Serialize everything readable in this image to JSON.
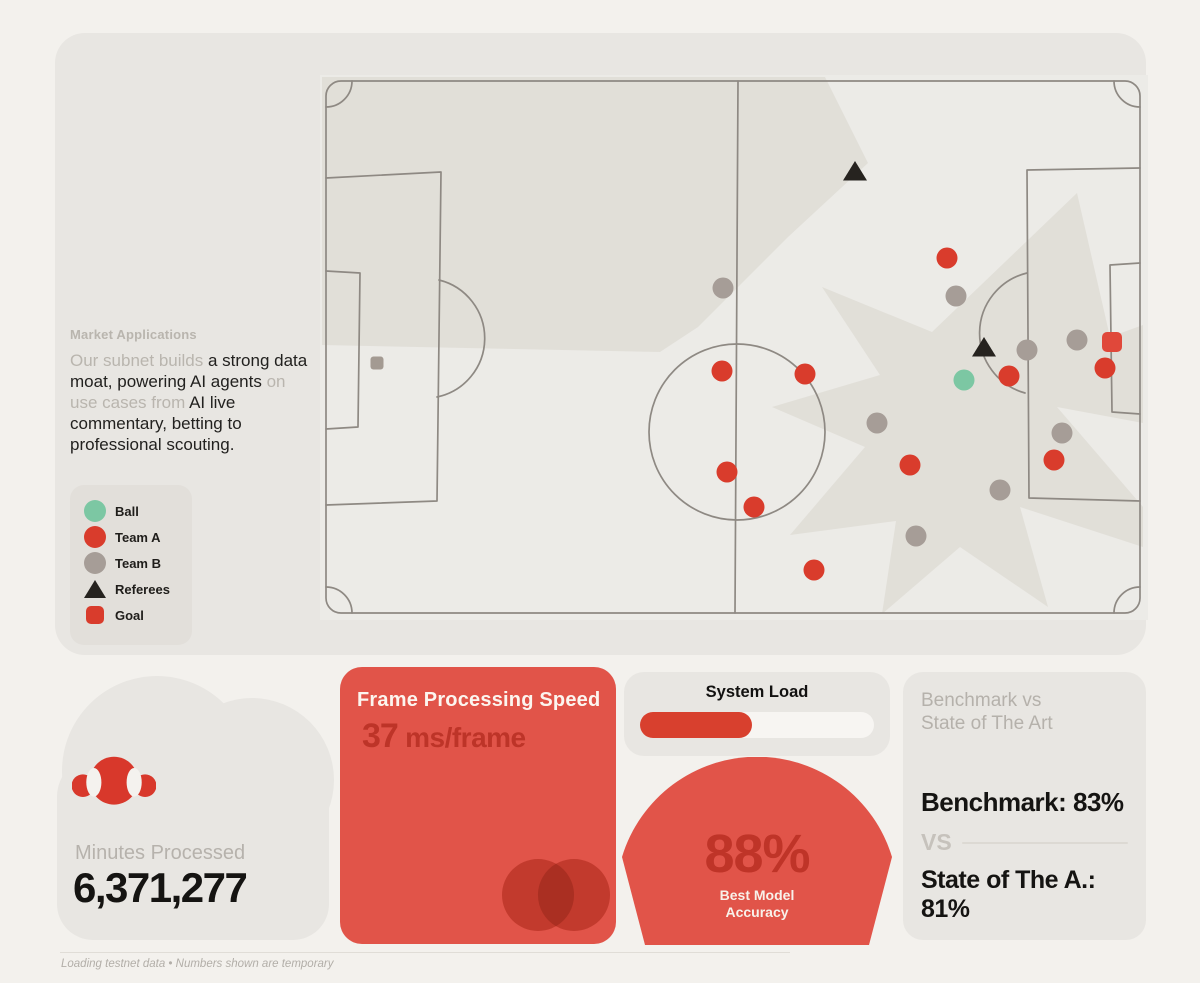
{
  "market": {
    "label": "Market Applications",
    "segments": [
      {
        "text": "Our subnet builds ",
        "muted": true
      },
      {
        "text": "a strong data moat, powering AI agents ",
        "muted": false
      },
      {
        "text": "on use cases from ",
        "muted": true
      },
      {
        "text": "AI live commentary, betting to professional scouting.",
        "muted": false
      }
    ]
  },
  "legend": {
    "items": [
      {
        "label": "Ball",
        "marker": "circle",
        "color": "#7cc7a3"
      },
      {
        "label": "Team A",
        "marker": "circle",
        "color": "#d93c2c"
      },
      {
        "label": "Team B",
        "marker": "circle",
        "color": "#a69d97"
      },
      {
        "label": "Referees",
        "marker": "triangle",
        "color": "#26231f"
      },
      {
        "label": "Goal",
        "marker": "square",
        "color": "#d93c2c"
      }
    ]
  },
  "chart_data": {
    "type": "scatter",
    "title": "Football pitch player-tracking map",
    "x_range": [
      0,
      828
    ],
    "y_range": [
      0,
      545
    ],
    "legend_position": "left",
    "grid": false,
    "series": [
      {
        "name": "Ball",
        "marker": "circle",
        "color": "#7cc7a3",
        "size": 21,
        "points": [
          [
            644,
            305
          ]
        ]
      },
      {
        "name": "Team A",
        "marker": "circle",
        "color": "#d93c2c",
        "size": 21,
        "points": [
          [
            402,
            296
          ],
          [
            485,
            299
          ],
          [
            627,
            183
          ],
          [
            689,
            301
          ],
          [
            785,
            293
          ],
          [
            734,
            385
          ],
          [
            407,
            397
          ],
          [
            434,
            432
          ],
          [
            590,
            390
          ],
          [
            494,
            495
          ]
        ]
      },
      {
        "name": "Team B",
        "marker": "circle",
        "color": "#a69d97",
        "size": 21,
        "points": [
          [
            403,
            213
          ],
          [
            636,
            221
          ],
          [
            707,
            275
          ],
          [
            757,
            265
          ],
          [
            557,
            348
          ],
          [
            742,
            358
          ],
          [
            680,
            415
          ],
          [
            596,
            461
          ]
        ]
      },
      {
        "name": "Referees",
        "marker": "triangle",
        "color": "#26231f",
        "size": 24,
        "points": [
          [
            535,
            97
          ],
          [
            664,
            273
          ]
        ]
      },
      {
        "name": "Goal",
        "marker": "square",
        "color": "#e0483a",
        "size": 20,
        "points": [
          [
            792,
            267
          ]
        ]
      },
      {
        "name": "Goal far end",
        "marker": "square",
        "color": "#a39a92",
        "size": 13,
        "points": [
          [
            57,
            288
          ]
        ]
      }
    ]
  },
  "stats": {
    "minutes": {
      "label": "Minutes Processed",
      "value": "6,371,277"
    },
    "speed": {
      "title": "Frame Processing Speed",
      "value": "37",
      "unit": " ms/frame"
    },
    "load": {
      "title": "System Load",
      "percent": 48
    },
    "accuracy": {
      "value": "88%",
      "caption": [
        "Best Model",
        "Accuracy"
      ]
    },
    "benchmark": {
      "title": [
        "Benchmark vs",
        "State of The Art"
      ],
      "primary": "Benchmark: 83%",
      "divider": "VS",
      "secondary": "State of The A.: 81%"
    }
  },
  "footer": {
    "note": "Loading testnet data • Numbers shown are temporary"
  }
}
